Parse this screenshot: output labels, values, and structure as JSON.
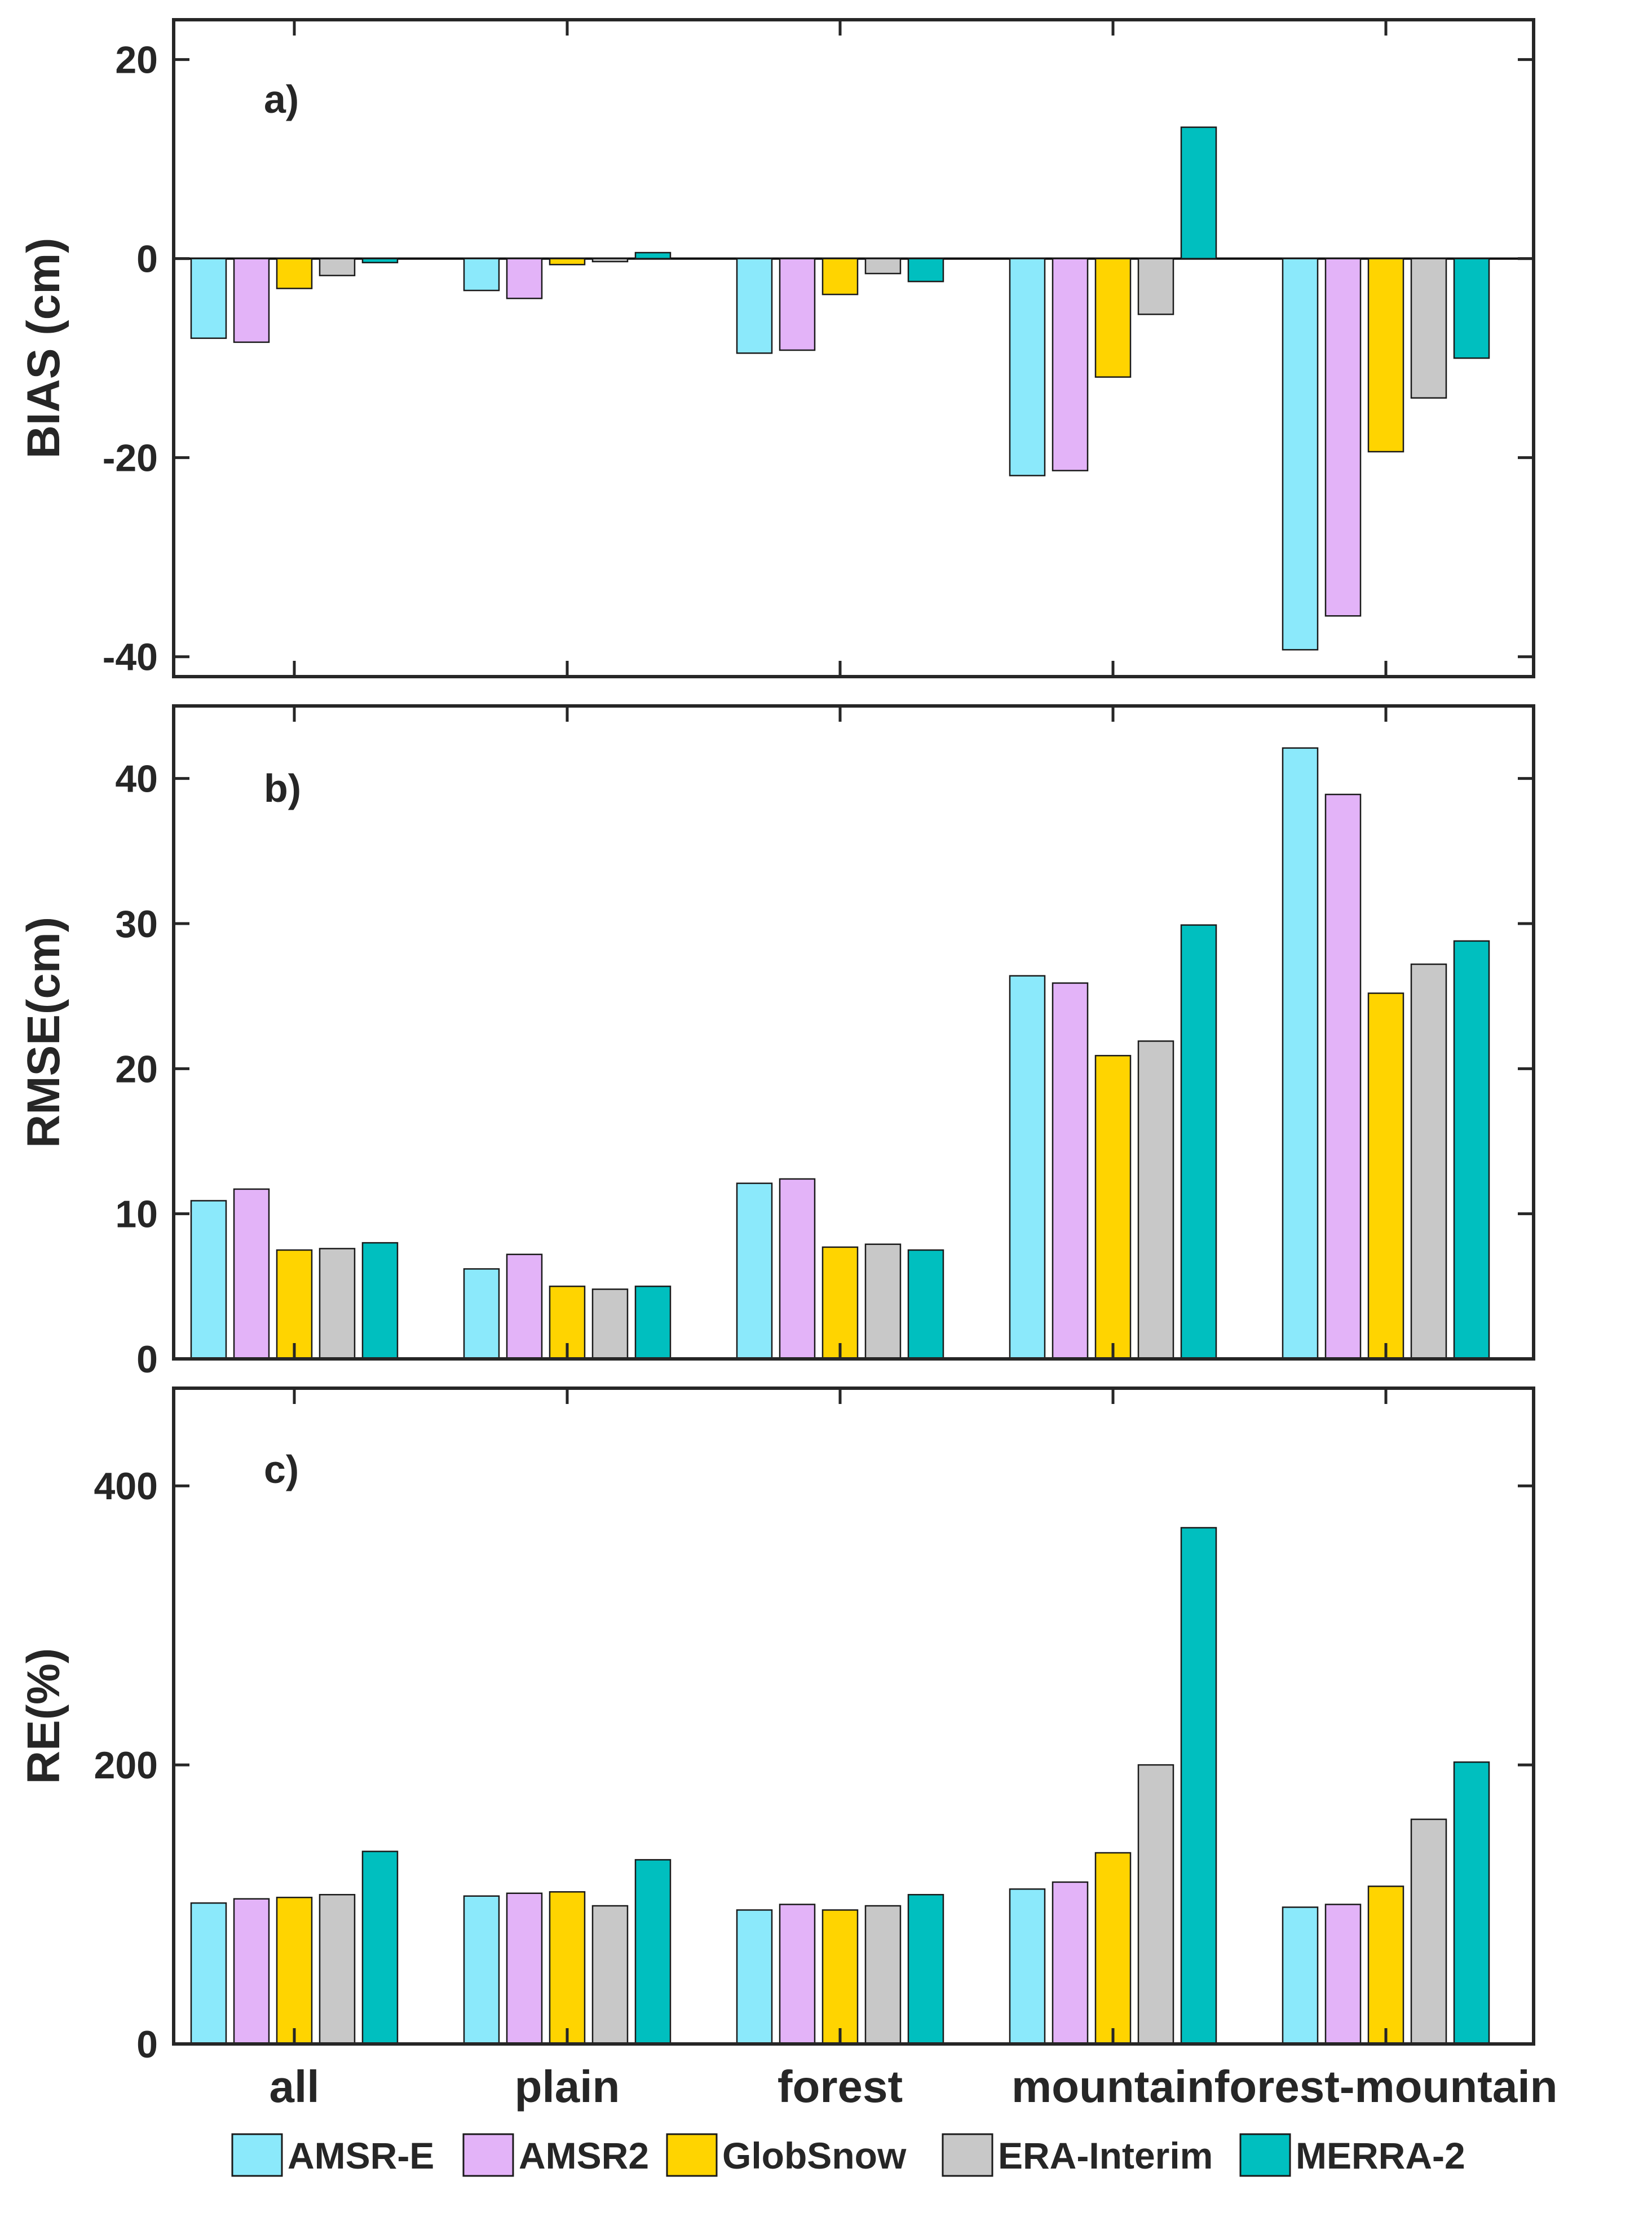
{
  "colors": {
    "AMSR-E": "#8be9fb",
    "AMSR2": "#e3b3f8",
    "GlobSnow": "#ffd400",
    "ERA-Interim": "#c8c8c8",
    "MERRA-2": "#00bfbf"
  },
  "legend": [
    {
      "label": "AMSR-E",
      "color_key": "AMSR-E"
    },
    {
      "label": "AMSR2",
      "color_key": "AMSR2"
    },
    {
      "label": "GlobSnow",
      "color_key": "GlobSnow"
    },
    {
      "label": "ERA-Interim",
      "color_key": "ERA-Interim"
    },
    {
      "label": "MERRA-2",
      "color_key": "MERRA-2"
    }
  ],
  "chart_data": [
    {
      "type": "bar",
      "panel_label": "a)",
      "ylabel": "BIAS (cm)",
      "ylim": [
        -42,
        24
      ],
      "yticks": [
        20,
        0,
        -20,
        -40
      ],
      "zero_line": true,
      "categories": [
        "all",
        "plain",
        "forest",
        "mountain",
        "forest-mountain"
      ],
      "series": [
        {
          "name": "AMSR-E",
          "values": [
            -8.0,
            -3.2,
            -9.5,
            -21.8,
            -39.3
          ]
        },
        {
          "name": "AMSR2",
          "values": [
            -8.4,
            -4.0,
            -9.2,
            -21.3,
            -35.9
          ]
        },
        {
          "name": "GlobSnow",
          "values": [
            -3.0,
            -0.6,
            -3.6,
            -11.9,
            -19.4
          ]
        },
        {
          "name": "ERA-Interim",
          "values": [
            -1.7,
            -0.3,
            -1.5,
            -5.6,
            -14.0
          ]
        },
        {
          "name": "MERRA-2",
          "values": [
            -0.4,
            0.6,
            -2.3,
            13.2,
            -10.0
          ]
        }
      ]
    },
    {
      "type": "bar",
      "panel_label": "b)",
      "ylabel": "RMSE(cm)",
      "ylim": [
        0,
        45
      ],
      "yticks": [
        40,
        30,
        20,
        10,
        0
      ],
      "zero_line": false,
      "categories": [
        "all",
        "plain",
        "forest",
        "mountain",
        "forest-mountain"
      ],
      "series": [
        {
          "name": "AMSR-E",
          "values": [
            10.9,
            6.2,
            12.1,
            26.4,
            42.1
          ]
        },
        {
          "name": "AMSR2",
          "values": [
            11.7,
            7.2,
            12.4,
            25.9,
            38.9
          ]
        },
        {
          "name": "GlobSnow",
          "values": [
            7.5,
            5.0,
            7.7,
            20.9,
            25.2
          ]
        },
        {
          "name": "ERA-Interim",
          "values": [
            7.6,
            4.8,
            7.9,
            21.9,
            27.2
          ]
        },
        {
          "name": "MERRA-2",
          "values": [
            8.0,
            5.0,
            7.5,
            29.9,
            28.8
          ]
        }
      ]
    },
    {
      "type": "bar",
      "panel_label": "c)",
      "ylabel": "RE(%)",
      "ylim": [
        0,
        470
      ],
      "yticks": [
        400,
        200,
        0
      ],
      "zero_line": false,
      "categories": [
        "all",
        "plain",
        "forest",
        "mountain",
        "forest-mountain"
      ],
      "series": [
        {
          "name": "AMSR-E",
          "values": [
            101,
            106,
            96,
            111,
            98
          ]
        },
        {
          "name": "AMSR2",
          "values": [
            104,
            108,
            100,
            116,
            100
          ]
        },
        {
          "name": "GlobSnow",
          "values": [
            105,
            109,
            96,
            137,
            113
          ]
        },
        {
          "name": "ERA-Interim",
          "values": [
            107,
            99,
            99,
            200,
            161
          ]
        },
        {
          "name": "MERRA-2",
          "values": [
            138,
            132,
            107,
            370,
            202
          ]
        }
      ]
    }
  ]
}
